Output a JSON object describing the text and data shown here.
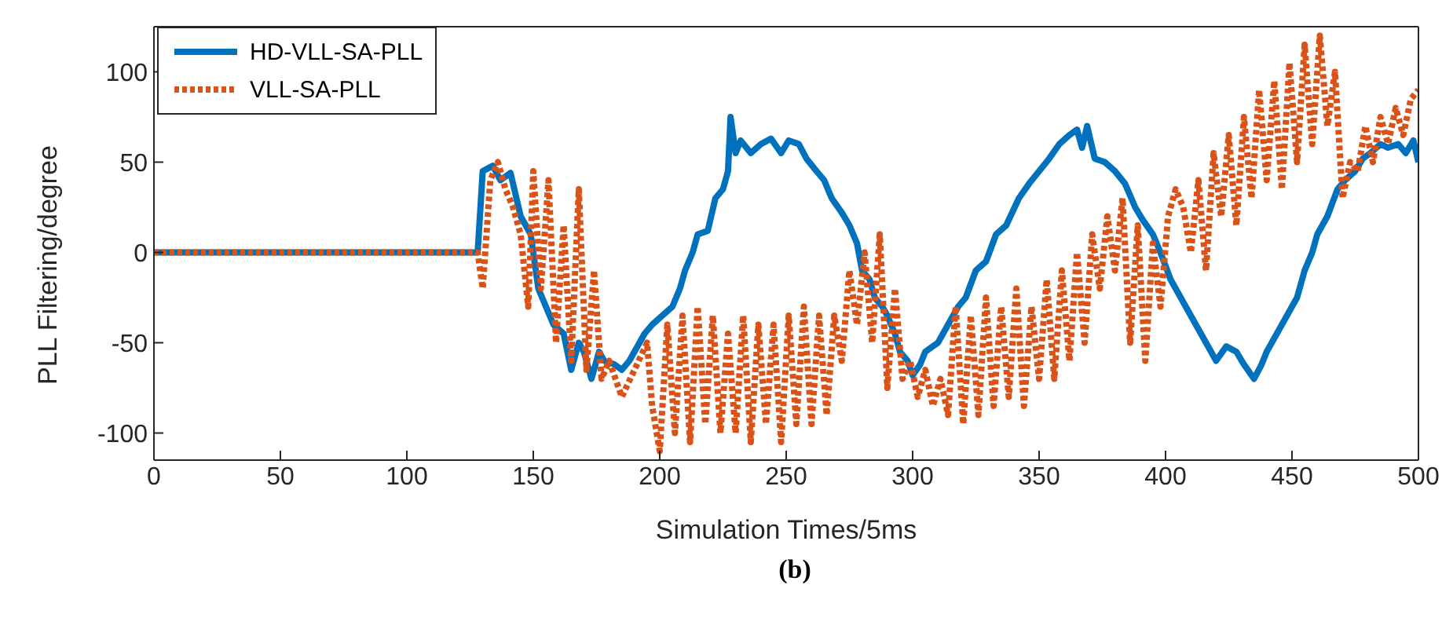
{
  "chart_data": {
    "type": "line",
    "xlabel": "Simulation Times/5ms",
    "ylabel": "PLL Filtering/degree",
    "annotations": [
      "(b)"
    ],
    "xlim": [
      0,
      500
    ],
    "xticks": [
      0,
      50,
      100,
      150,
      200,
      250,
      300,
      350,
      400,
      450,
      500
    ],
    "ylim": [
      -115,
      125
    ],
    "yticks": [
      -100,
      -50,
      0,
      50,
      100
    ],
    "legend": "top left",
    "marker": "none",
    "series": [
      {
        "name": "HD-VLL-SA-PLL",
        "color": "#0072bd",
        "line_style": "solid",
        "x": [
          0,
          128,
          130,
          134,
          137,
          141,
          145,
          149,
          152,
          155,
          158,
          162,
          165,
          168,
          170,
          173,
          176,
          178,
          182,
          185,
          188,
          190,
          194,
          197,
          201,
          205,
          208,
          210,
          213,
          215,
          219,
          222,
          225,
          227,
          228,
          230,
          232,
          236,
          240,
          244,
          248,
          251,
          255,
          258,
          262,
          265,
          268,
          272,
          275,
          278,
          280,
          283,
          285,
          288,
          290,
          293,
          295,
          298,
          300,
          303,
          305,
          308,
          310,
          314,
          318,
          321,
          325,
          329,
          333,
          337,
          342,
          346,
          350,
          354,
          358,
          362,
          365,
          367,
          369,
          372,
          376,
          380,
          384,
          388,
          391,
          395,
          398,
          402,
          406,
          410,
          414,
          418,
          420,
          424,
          428,
          431,
          435,
          438,
          440,
          444,
          448,
          452,
          455,
          458,
          460,
          464,
          468,
          471,
          475,
          478,
          481,
          485,
          488,
          492,
          495,
          498,
          500
        ],
        "values": [
          0,
          0,
          45,
          48,
          40,
          44,
          20,
          10,
          -20,
          -30,
          -40,
          -45,
          -65,
          -50,
          -55,
          -70,
          -55,
          -60,
          -62,
          -65,
          -60,
          -55,
          -45,
          -40,
          -35,
          -30,
          -20,
          -10,
          0,
          10,
          12,
          30,
          35,
          45,
          75,
          55,
          62,
          55,
          60,
          63,
          55,
          62,
          60,
          52,
          45,
          40,
          30,
          22,
          15,
          5,
          -10,
          -15,
          -25,
          -30,
          -35,
          -45,
          -55,
          -60,
          -68,
          -62,
          -55,
          -52,
          -50,
          -40,
          -30,
          -25,
          -10,
          -5,
          10,
          15,
          30,
          38,
          45,
          52,
          60,
          65,
          68,
          58,
          70,
          52,
          50,
          45,
          38,
          25,
          18,
          10,
          0,
          -15,
          -25,
          -35,
          -45,
          -55,
          -60,
          -52,
          -55,
          -62,
          -70,
          -62,
          -55,
          -45,
          -35,
          -25,
          -10,
          0,
          10,
          20,
          35,
          40,
          45,
          52,
          55,
          60,
          58,
          60,
          55,
          62,
          50
        ]
      },
      {
        "name": "VLL-SA-PLL",
        "color": "#d95319",
        "line_style": "dotted",
        "x": [
          0,
          128,
          130,
          133,
          136,
          139,
          142,
          145,
          148,
          150,
          153,
          156,
          159,
          162,
          165,
          168,
          171,
          174,
          177,
          180,
          185,
          190,
          195,
          197,
          200,
          203,
          206,
          209,
          212,
          215,
          218,
          221,
          224,
          227,
          230,
          233,
          236,
          239,
          242,
          245,
          248,
          251,
          254,
          257,
          260,
          263,
          266,
          269,
          272,
          275,
          278,
          281,
          284,
          287,
          290,
          293,
          296,
          299,
          302,
          305,
          308,
          311,
          314,
          317,
          320,
          323,
          326,
          329,
          332,
          335,
          338,
          341,
          344,
          347,
          350,
          353,
          356,
          359,
          362,
          365,
          368,
          371,
          374,
          377,
          380,
          383,
          386,
          389,
          392,
          395,
          398,
          401,
          404,
          407,
          410,
          413,
          416,
          419,
          422,
          425,
          428,
          431,
          434,
          437,
          440,
          443,
          446,
          449,
          452,
          455,
          458,
          461,
          464,
          467,
          470,
          473,
          476,
          479,
          482,
          485,
          488,
          491,
          494,
          497,
          500
        ],
        "values": [
          0,
          0,
          -20,
          40,
          50,
          35,
          25,
          10,
          -30,
          45,
          -20,
          40,
          -50,
          15,
          -60,
          35,
          -65,
          -10,
          -70,
          -60,
          -80,
          -65,
          -50,
          -85,
          -110,
          -40,
          -100,
          -35,
          -105,
          -30,
          -95,
          -35,
          -100,
          -45,
          -100,
          -35,
          -105,
          -40,
          -95,
          -40,
          -105,
          -35,
          -95,
          -30,
          -95,
          -35,
          -90,
          -35,
          -60,
          -10,
          -40,
          0,
          -50,
          10,
          -75,
          -20,
          -70,
          -60,
          -80,
          -65,
          -85,
          -70,
          -90,
          -30,
          -95,
          -35,
          -90,
          -25,
          -85,
          -30,
          -80,
          -20,
          -85,
          -30,
          -70,
          -15,
          -70,
          -10,
          -60,
          0,
          -50,
          10,
          -20,
          20,
          -10,
          30,
          -50,
          15,
          -60,
          5,
          -30,
          20,
          35,
          25,
          0,
          40,
          -10,
          55,
          20,
          65,
          15,
          75,
          30,
          90,
          40,
          95,
          35,
          105,
          50,
          115,
          60,
          120,
          70,
          100,
          30,
          50,
          45,
          70,
          50,
          75,
          60,
          80,
          65,
          85,
          90
        ]
      }
    ]
  }
}
